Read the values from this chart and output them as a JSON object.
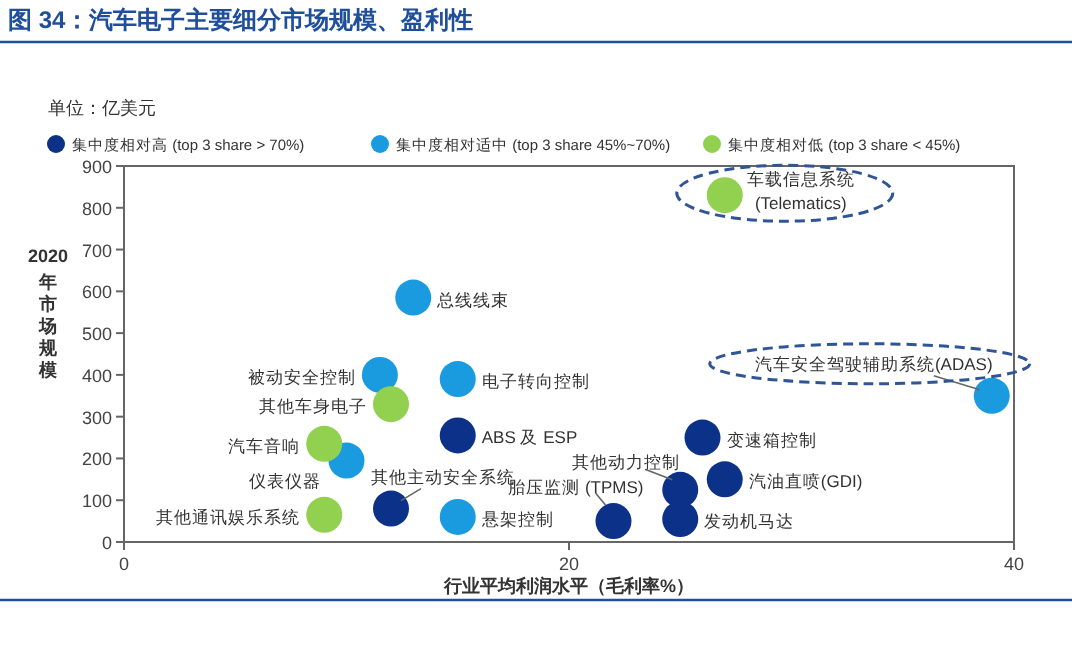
{
  "chart_data": {
    "type": "scatter",
    "title": "图 34：汽车电子主要细分市场规模、盈利性",
    "xlabel": "行业平均利润水平（毛利率%）",
    "ylabel": "2020 年市场规模",
    "xlim": [
      0,
      40
    ],
    "xticks": [
      0,
      20,
      40
    ],
    "ylim": [
      0,
      900
    ],
    "yticks": [
      0,
      100,
      200,
      300,
      400,
      500,
      600,
      700,
      800,
      900
    ],
    "legend": "top",
    "marker": "circle",
    "series": [
      {
        "name": "集中度相对高 (top 3 share > 70%)",
        "color": "#0b3189",
        "x": [
          15,
          12,
          26,
          27,
          25,
          22,
          25
        ],
        "values": [
          255,
          80,
          250,
          150,
          125,
          50,
          55
        ]
      },
      {
        "name": "集中度相对适中 (top 3 share 45%~70%)",
        "color": "#1a9be0",
        "x": [
          13,
          11.5,
          15,
          10,
          15,
          39
        ],
        "values": [
          585,
          400,
          390,
          195,
          60,
          350
        ]
      },
      {
        "name": "集中度相对低 (top 3 share < 45%)",
        "color": "#92d050",
        "x": [
          27,
          12,
          9,
          9
        ],
        "values": [
          830,
          330,
          235,
          65
        ]
      }
    ],
    "annotations": [
      {
        "text": "车载信息系统\n(Telematics)",
        "x": 27,
        "y": 830
      },
      {
        "text": "汽车安全驾驶辅助系统(ADAS)",
        "x": 39,
        "y": 350
      },
      {
        "text": "总线线束",
        "x": 13,
        "y": 585
      },
      {
        "text": "被动安全控制",
        "x": 11.5,
        "y": 400
      },
      {
        "text": "电子转向控制",
        "x": 15,
        "y": 390
      },
      {
        "text": "其他车身电子",
        "x": 12,
        "y": 330
      },
      {
        "text": "ABS 及 ESP",
        "x": 15,
        "y": 255
      },
      {
        "text": "汽车音响",
        "x": 9,
        "y": 235
      },
      {
        "text": "仪表仪器",
        "x": 10,
        "y": 195
      },
      {
        "text": "其他主动安全系统",
        "x": 12,
        "y": 80
      },
      {
        "text": "其他通讯娱乐系统",
        "x": 9,
        "y": 65
      },
      {
        "text": "悬架控制",
        "x": 15,
        "y": 60
      },
      {
        "text": "变速箱控制",
        "x": 26,
        "y": 250
      },
      {
        "text": "汽油直喷(GDI)",
        "x": 27,
        "y": 150
      },
      {
        "text": "其他动力控制",
        "x": 25,
        "y": 125
      },
      {
        "text": "胎压监测 (TPMS)",
        "x": 22,
        "y": 50
      },
      {
        "text": "发动机马达",
        "x": 25,
        "y": 55
      },
      "单位：亿美元"
    ]
  }
}
